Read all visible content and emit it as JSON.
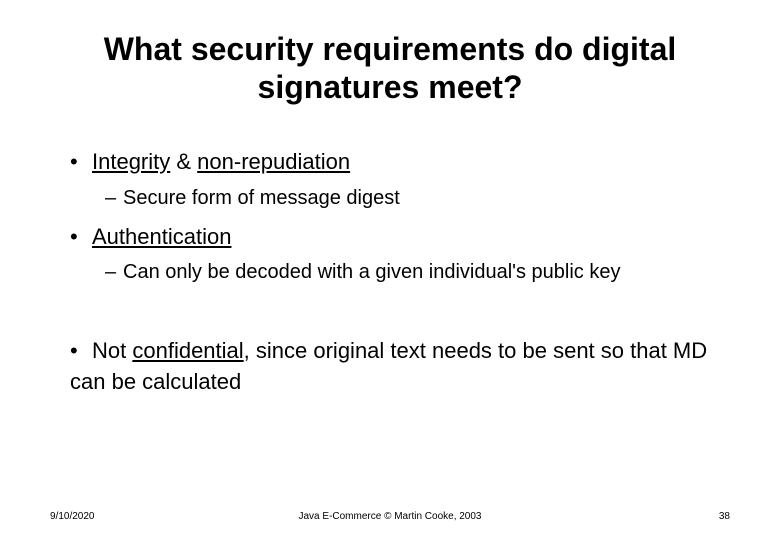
{
  "title": "What security requirements do digital signatures meet?",
  "bullets": {
    "b1_pre": "",
    "b1_u1": "Integrity",
    "b1_mid": " & ",
    "b1_u2": "non-repudiation",
    "b1_sub": "Secure form of message digest",
    "b2_u": "Authentication",
    "b2_sub": "Can only be decoded with a given individual's public key",
    "b3_pre": "Not ",
    "b3_u": "confidential",
    "b3_post": ", since original text needs to be sent so that MD can be calculated"
  },
  "footer": {
    "date": "9/10/2020",
    "center": "Java E-Commerce © Martin Cooke, 2003",
    "page": "38"
  }
}
